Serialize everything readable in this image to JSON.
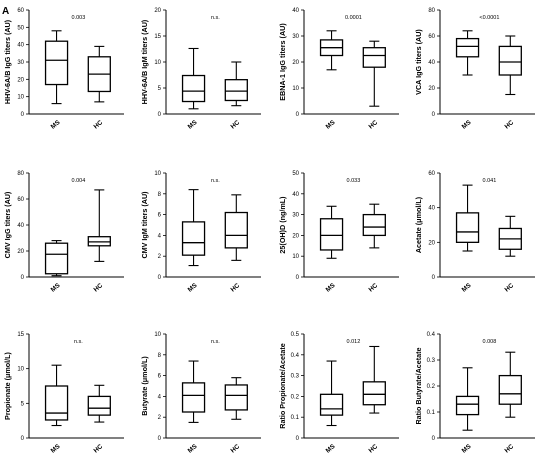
{
  "panel_letter": "A",
  "chart_data": [
    {
      "type": "box",
      "ylabel": "HHV-6A/B IgG titers (AU)",
      "ylim": [
        0,
        60
      ],
      "yticks": [
        0,
        10,
        20,
        30,
        40,
        50,
        60
      ],
      "annotation": "0.003",
      "categories": [
        "MS",
        "HC"
      ],
      "boxes": [
        {
          "name": "MS",
          "min": 6,
          "q1": 17,
          "median": 31,
          "q3": 42,
          "max": 48
        },
        {
          "name": "HC",
          "min": 7,
          "q1": 13,
          "median": 23,
          "q3": 33,
          "max": 39
        }
      ]
    },
    {
      "type": "box",
      "ylabel": "HHV-6A/B IgM titers (AU)",
      "ylim": [
        0,
        20
      ],
      "yticks": [
        0,
        5,
        10,
        15,
        20
      ],
      "annotation": "n.s.",
      "categories": [
        "MS",
        "HC"
      ],
      "boxes": [
        {
          "name": "MS",
          "min": 1.0,
          "q1": 2.4,
          "median": 4.4,
          "q3": 7.4,
          "max": 12.6
        },
        {
          "name": "HC",
          "min": 1.6,
          "q1": 2.6,
          "median": 4.4,
          "q3": 6.6,
          "max": 10.0
        }
      ]
    },
    {
      "type": "box",
      "ylabel": "EBNA-1 IgG titers (AU)",
      "ylim": [
        0,
        40
      ],
      "yticks": [
        0,
        10,
        20,
        30,
        40
      ],
      "annotation": "0.0001",
      "categories": [
        "MS",
        "HC"
      ],
      "boxes": [
        {
          "name": "MS",
          "min": 17,
          "q1": 22.5,
          "median": 25.5,
          "q3": 28.5,
          "max": 32
        },
        {
          "name": "HC",
          "min": 3,
          "q1": 18,
          "median": 22.5,
          "q3": 25.5,
          "max": 28
        }
      ]
    },
    {
      "type": "box",
      "ylabel": "VCA IgG titers (AU)",
      "ylim": [
        0,
        80
      ],
      "yticks": [
        0,
        20,
        40,
        60,
        80
      ],
      "annotation": "<0.0001",
      "categories": [
        "MS",
        "HC"
      ],
      "boxes": [
        {
          "name": "MS",
          "min": 30,
          "q1": 44,
          "median": 52,
          "q3": 58,
          "max": 64
        },
        {
          "name": "HC",
          "min": 15,
          "q1": 30,
          "median": 40,
          "q3": 52,
          "max": 60
        }
      ]
    },
    {
      "type": "box",
      "ylabel": "CMV IgG titers (AU)",
      "ylim": [
        0,
        80
      ],
      "yticks": [
        0,
        20,
        40,
        60,
        80
      ],
      "annotation": "0.004",
      "categories": [
        "MS",
        "HC"
      ],
      "boxes": [
        {
          "name": "MS",
          "min": 1,
          "q1": 2.5,
          "median": 17.5,
          "q3": 26,
          "max": 28
        },
        {
          "name": "HC",
          "min": 12,
          "q1": 24,
          "median": 27,
          "q3": 31,
          "max": 67
        }
      ]
    },
    {
      "type": "box",
      "ylabel": "CMV IgM titers (AU)",
      "ylim": [
        0,
        10
      ],
      "yticks": [
        0,
        2,
        4,
        6,
        8,
        10
      ],
      "annotation": "n.s.",
      "categories": [
        "MS",
        "HC"
      ],
      "boxes": [
        {
          "name": "MS",
          "min": 1.1,
          "q1": 2.1,
          "median": 3.3,
          "q3": 5.3,
          "max": 8.4
        },
        {
          "name": "HC",
          "min": 1.6,
          "q1": 2.8,
          "median": 4.0,
          "q3": 6.2,
          "max": 7.9
        }
      ]
    },
    {
      "type": "box",
      "ylabel": "25(OH)D (ng/mL)",
      "ylim": [
        0,
        50
      ],
      "yticks": [
        0,
        10,
        20,
        30,
        40,
        50
      ],
      "annotation": "0.033",
      "categories": [
        "MS",
        "HC"
      ],
      "boxes": [
        {
          "name": "MS",
          "min": 9,
          "q1": 13,
          "median": 20,
          "q3": 28,
          "max": 34
        },
        {
          "name": "HC",
          "min": 14,
          "q1": 20,
          "median": 24,
          "q3": 30,
          "max": 35
        }
      ]
    },
    {
      "type": "box",
      "ylabel": "Acetate (μmol/L)",
      "ylim": [
        0,
        60
      ],
      "yticks": [
        0,
        20,
        40,
        60
      ],
      "annotation": "0.041",
      "categories": [
        "MS",
        "HC"
      ],
      "boxes": [
        {
          "name": "MS",
          "min": 15,
          "q1": 20,
          "median": 26,
          "q3": 37,
          "max": 53
        },
        {
          "name": "HC",
          "min": 12,
          "q1": 16,
          "median": 22,
          "q3": 28,
          "max": 35
        }
      ]
    },
    {
      "type": "box",
      "ylabel": "Propionate (μmol/L)",
      "ylim": [
        0,
        15
      ],
      "yticks": [
        0,
        5,
        10,
        15
      ],
      "annotation": "n.s.",
      "categories": [
        "MS",
        "HC"
      ],
      "boxes": [
        {
          "name": "MS",
          "min": 1.8,
          "q1": 2.6,
          "median": 3.6,
          "q3": 7.5,
          "max": 10.5
        },
        {
          "name": "HC",
          "min": 2.3,
          "q1": 3.3,
          "median": 4.3,
          "q3": 6.0,
          "max": 7.6
        }
      ]
    },
    {
      "type": "box",
      "ylabel": "Butyrate (μmol/L)",
      "ylim": [
        0,
        10
      ],
      "yticks": [
        0,
        2,
        4,
        6,
        8,
        10
      ],
      "annotation": "n.s.",
      "categories": [
        "MS",
        "HC"
      ],
      "boxes": [
        {
          "name": "MS",
          "min": 1.5,
          "q1": 2.5,
          "median": 4.1,
          "q3": 5.3,
          "max": 7.4
        },
        {
          "name": "HC",
          "min": 1.8,
          "q1": 2.7,
          "median": 4.1,
          "q3": 5.1,
          "max": 5.8
        }
      ]
    },
    {
      "type": "box",
      "ylabel": "Ratio Propionate/Acetate",
      "ylim": [
        0,
        0.5
      ],
      "yticks": [
        0,
        0.1,
        0.2,
        0.3,
        0.4,
        0.5
      ],
      "annotation": "0.012",
      "categories": [
        "MS",
        "HC"
      ],
      "boxes": [
        {
          "name": "MS",
          "min": 0.06,
          "q1": 0.11,
          "median": 0.14,
          "q3": 0.21,
          "max": 0.37
        },
        {
          "name": "HC",
          "min": 0.12,
          "q1": 0.16,
          "median": 0.21,
          "q3": 0.27,
          "max": 0.44
        }
      ]
    },
    {
      "type": "box",
      "ylabel": "Ratio Butyrate/Acetate",
      "ylim": [
        0,
        0.4
      ],
      "yticks": [
        0,
        0.1,
        0.2,
        0.3,
        0.4
      ],
      "annotation": "0.008",
      "categories": [
        "MS",
        "HC"
      ],
      "boxes": [
        {
          "name": "MS",
          "min": 0.03,
          "q1": 0.09,
          "median": 0.13,
          "q3": 0.16,
          "max": 0.27
        },
        {
          "name": "HC",
          "min": 0.08,
          "q1": 0.13,
          "median": 0.17,
          "q3": 0.24,
          "max": 0.33
        }
      ]
    }
  ]
}
